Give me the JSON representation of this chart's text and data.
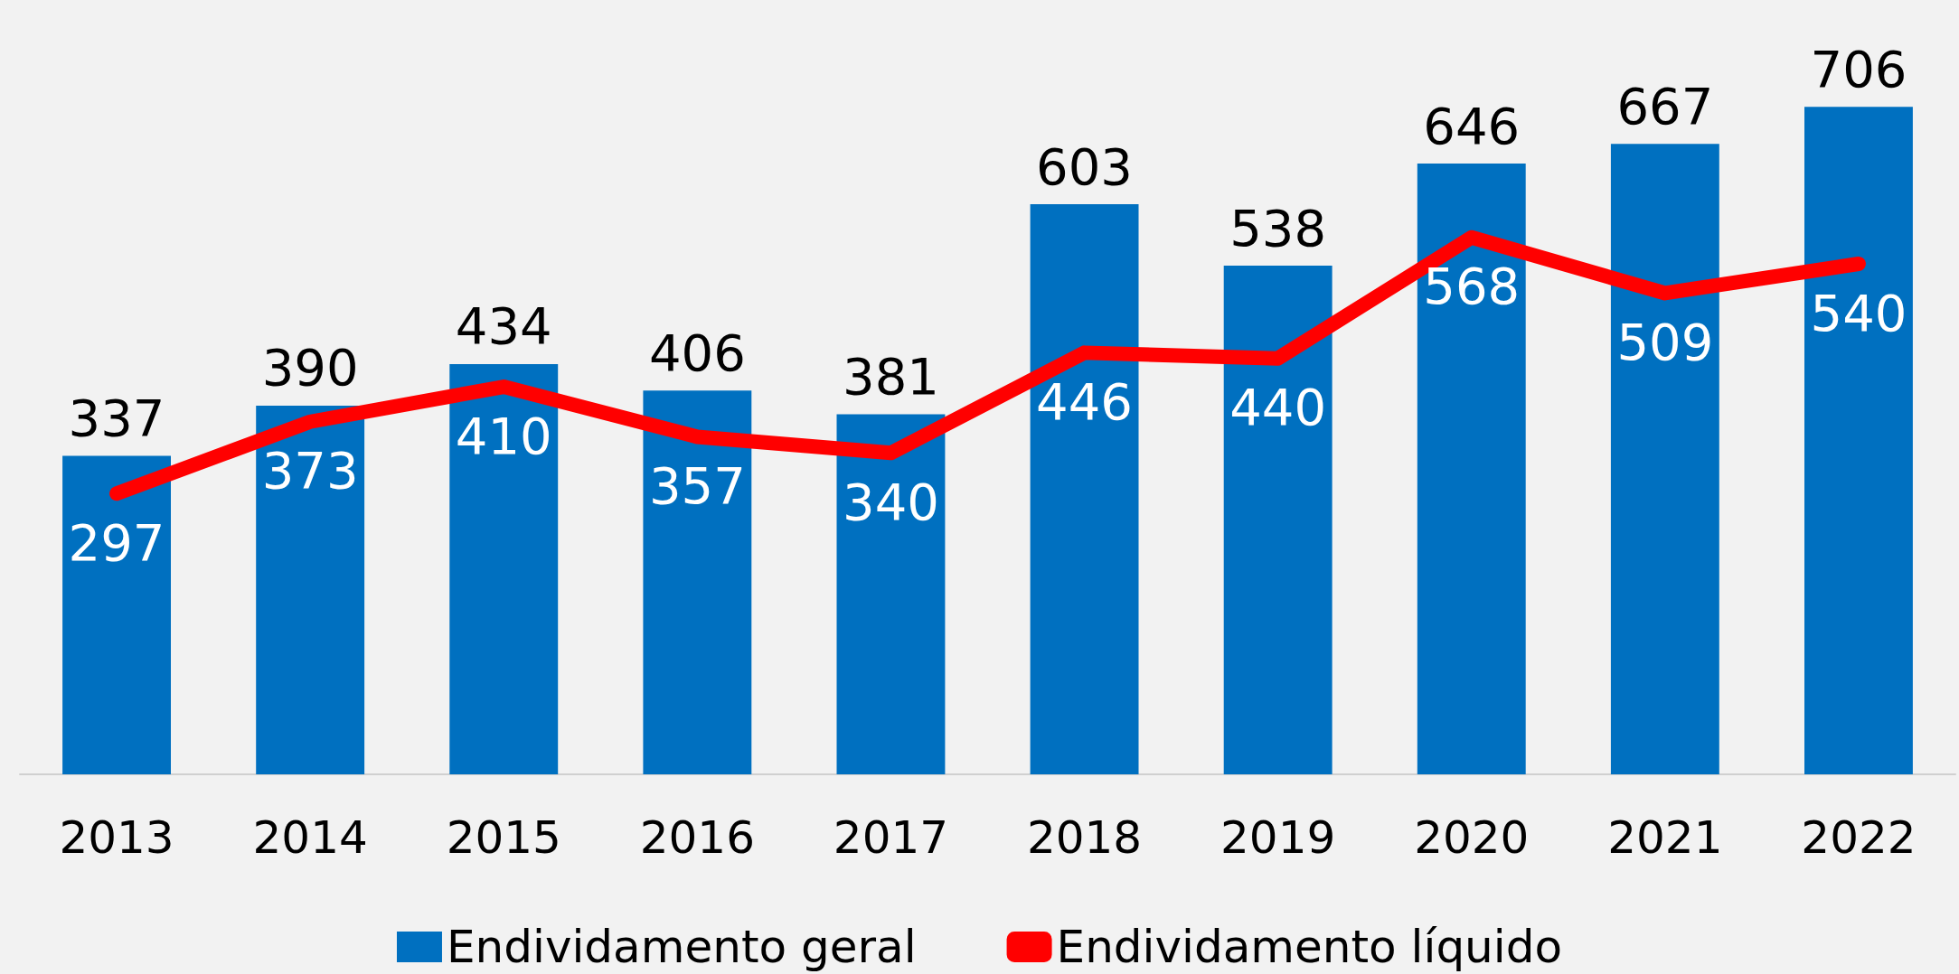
{
  "chart_data": {
    "type": "bar",
    "categories": [
      "2013",
      "2014",
      "2015",
      "2016",
      "2017",
      "2018",
      "2019",
      "2020",
      "2021",
      "2022"
    ],
    "series": [
      {
        "name": "Endividamento geral",
        "color": "#0070c0",
        "values": [
          337,
          390,
          434,
          406,
          381,
          603,
          538,
          646,
          667,
          706
        ]
      },
      {
        "name": "Endividamento líquido",
        "type": "line",
        "color": "#ff0000",
        "values": [
          297,
          373,
          410,
          357,
          340,
          446,
          440,
          568,
          509,
          540
        ]
      }
    ],
    "data_labels": true,
    "legend": "bottom",
    "marker": "none",
    "line_style": "solid"
  }
}
